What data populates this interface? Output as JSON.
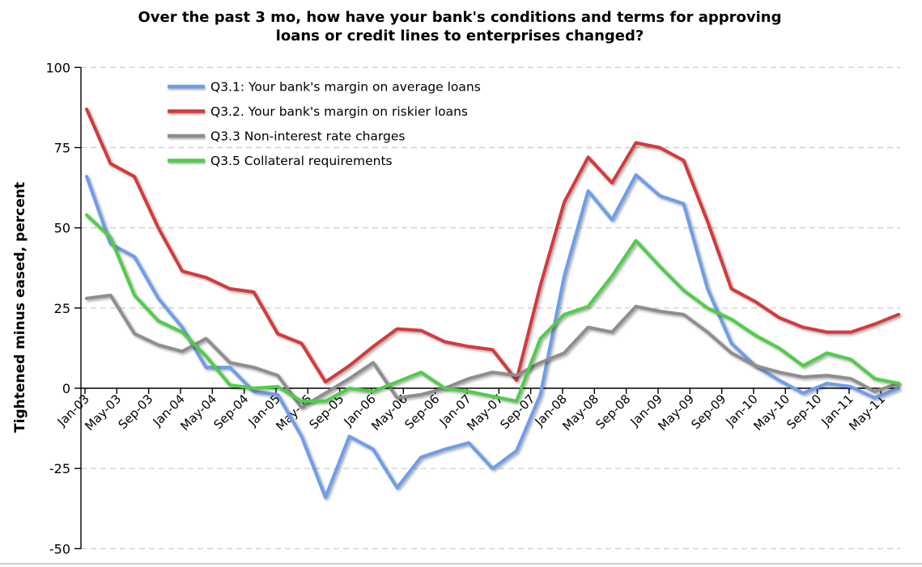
{
  "title": {
    "line1": "Over the past 3 mo, how have your bank's conditions and terms for approving",
    "line2": "loans or credit lines to enterprises changed?"
  },
  "y_axis": {
    "title": "Tightened minus eased, percent",
    "tick_labels": [
      "100",
      "75",
      "50",
      "25",
      "0",
      "-25",
      "-50"
    ],
    "tick_values": [
      100,
      75,
      50,
      25,
      0,
      -25,
      -50
    ],
    "min": -50,
    "max": 100
  },
  "x_axis": {
    "labels": [
      "Jan-03",
      "May-03",
      "Sep-03",
      "Jan-04",
      "May-04",
      "Sep-04",
      "Jan-05",
      "May-05",
      "Sep-05",
      "Jan-06",
      "May-06",
      "Sep-06",
      "Jan-07",
      "May-07",
      "Sep-07",
      "Jan-08",
      "May-08",
      "Sep-08",
      "Jan-09",
      "May-09",
      "Sep-09",
      "Jan-10",
      "May-10",
      "Sep-10",
      "Jan-11",
      "May-11"
    ]
  },
  "legend": {
    "items": [
      {
        "label": "Q3.1: Your bank's margin on average loans",
        "color": "#6D9EEB"
      },
      {
        "label": "Q3.2. Your bank's margin on riskier loans",
        "color": "#D43A3C"
      },
      {
        "label": "Q3.3 Non-interest rate charges",
        "color": "#8E8E8E"
      },
      {
        "label": "Q3.5 Collateral requirements",
        "color": "#4FCE48"
      }
    ]
  },
  "colors": {
    "gridline": "#c8c8c8",
    "axis": "#000000",
    "bottom_rule": "#cfcfcf"
  },
  "chart_data": {
    "type": "line",
    "title": "Over the past 3 mo, how have your bank's conditions and terms for approving loans or credit lines to enterprises changed?",
    "ylabel": "Tightened minus eased, percent",
    "ylim": [
      -50,
      100
    ],
    "grid": "horizontal dashed at 25-unit intervals",
    "legend_position": "top-left inside plot",
    "x_tick_labels_shown": [
      "Jan-03",
      "May-03",
      "Sep-03",
      "Jan-04",
      "May-04",
      "Sep-04",
      "Jan-05",
      "May-05",
      "Sep-05",
      "Jan-06",
      "May-06",
      "Sep-06",
      "Jan-07",
      "May-07",
      "Sep-07",
      "Jan-08",
      "May-08",
      "Sep-08",
      "Jan-09",
      "May-09",
      "Sep-09",
      "Jan-10",
      "May-10",
      "Sep-10",
      "Jan-11",
      "May-11"
    ],
    "x": [
      "Jan-03",
      "Apr-03",
      "Jul-03",
      "Oct-03",
      "Jan-04",
      "Apr-04",
      "Jul-04",
      "Oct-04",
      "Jan-05",
      "Apr-05",
      "Jul-05",
      "Oct-05",
      "Jan-06",
      "Apr-06",
      "Jul-06",
      "Oct-06",
      "Jan-07",
      "Apr-07",
      "Jul-07",
      "Oct-07",
      "Jan-08",
      "Apr-08",
      "Jul-08",
      "Oct-08",
      "Jan-09",
      "Apr-09",
      "Jul-09",
      "Oct-09",
      "Jan-10",
      "Apr-10",
      "Jul-10",
      "Oct-10",
      "Jan-11",
      "Apr-11",
      "Jul-11"
    ],
    "series": [
      {
        "name": "Q3.1: Your bank's margin on average loans",
        "color": "#6D9EEB",
        "values": [
          66,
          45,
          41,
          28,
          19,
          6.5,
          6.5,
          -1,
          -2,
          -15,
          -34,
          -15,
          -19,
          -31,
          -21.5,
          -19,
          -17,
          -25,
          -19.5,
          -2,
          35,
          61.5,
          52.5,
          66.5,
          60,
          57.5,
          31,
          14,
          7,
          2.5,
          -1.5,
          1.5,
          0.5,
          -3,
          0
        ]
      },
      {
        "name": "Q3.2. Your bank's margin on riskier loans",
        "color": "#D43A3C",
        "values": [
          87,
          70,
          66,
          50,
          36.5,
          34.5,
          31,
          30,
          17,
          14,
          2,
          7,
          13,
          18.5,
          18,
          14.5,
          13,
          12,
          2.5,
          32,
          58,
          72,
          64,
          76.5,
          75,
          71,
          52,
          31,
          27,
          22,
          19,
          17.5,
          17.5,
          20,
          23
        ]
      },
      {
        "name": "Q3.3 Non-interest rate charges",
        "color": "#8E8E8E",
        "values": [
          28,
          29,
          17,
          13.5,
          11.5,
          15.5,
          8,
          6.5,
          4,
          -6,
          -1.5,
          3,
          8,
          -3,
          -2,
          0,
          3,
          5,
          4,
          8,
          11,
          19,
          17.5,
          25.5,
          24,
          23,
          17.5,
          11,
          7,
          5,
          3.5,
          4,
          3,
          -1,
          1.5
        ]
      },
      {
        "name": "Q3.5 Collateral requirements",
        "color": "#4FCE48",
        "values": [
          54,
          47,
          29,
          21,
          17.5,
          10,
          1,
          0,
          0.5,
          -4,
          -4,
          0,
          -1,
          2,
          5,
          0,
          -1,
          -2.5,
          -4,
          15.5,
          23,
          25.5,
          35,
          46,
          38,
          30.5,
          25,
          21.5,
          16.5,
          12.5,
          7,
          11,
          9,
          3,
          1.5
        ]
      }
    ]
  },
  "geometry_note": "quarterly survey data plotted on time axis, labels every 4 months"
}
